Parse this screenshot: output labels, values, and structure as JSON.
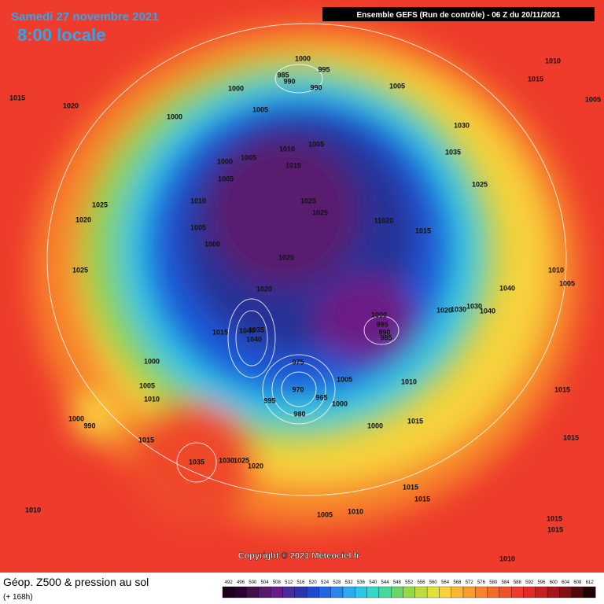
{
  "header": {
    "date": "Samedi 27 novembre 2021",
    "time": "8:00 locale",
    "run": "Ensemble GEFS  (Run de contrôle)  -  06 Z du 20/11/2021"
  },
  "copyright": "Copyright © 2021 Meteociel.fr",
  "footer": {
    "title": "Géop. Z500 & pression au sol",
    "lead": "(+ 168h)"
  },
  "colorbar": {
    "labels": [
      492,
      496,
      500,
      504,
      508,
      512,
      516,
      520,
      524,
      528,
      532,
      536,
      540,
      544,
      548,
      552,
      556,
      560,
      564,
      568,
      572,
      576,
      580,
      584,
      588,
      592,
      596,
      600,
      604,
      608,
      612
    ]
  },
  "isobars": [
    "1000",
    "995",
    "985",
    "990",
    "990",
    "1000",
    "1005",
    "1010",
    "1015",
    "1015",
    "1020",
    "1000",
    "1005",
    "1005",
    "1030",
    "1005",
    "1010",
    "1035",
    "1000",
    "1005",
    "1015",
    "1005",
    "1025",
    "1010",
    "1025",
    "1025",
    "1025",
    "1020",
    "1005",
    "11020",
    "1015",
    "1000",
    "1020",
    "1025",
    "1010",
    "1005",
    "1020",
    "1040",
    "1020",
    "1030",
    "1030",
    "1040",
    "1000",
    "995",
    "990",
    "985",
    "1015",
    "1040",
    "1035",
    "1040",
    "1000",
    "975",
    "970",
    "965",
    "1005",
    "1010",
    "1015",
    "1005",
    "1010",
    "995",
    "1000",
    "980",
    "1000",
    "990",
    "1015",
    "1000",
    "1015",
    "1015",
    "1035",
    "1030",
    "1025",
    "1020",
    "1015",
    "1015",
    "1010",
    "1005",
    "1010",
    "1015",
    "1015",
    "1010"
  ]
}
